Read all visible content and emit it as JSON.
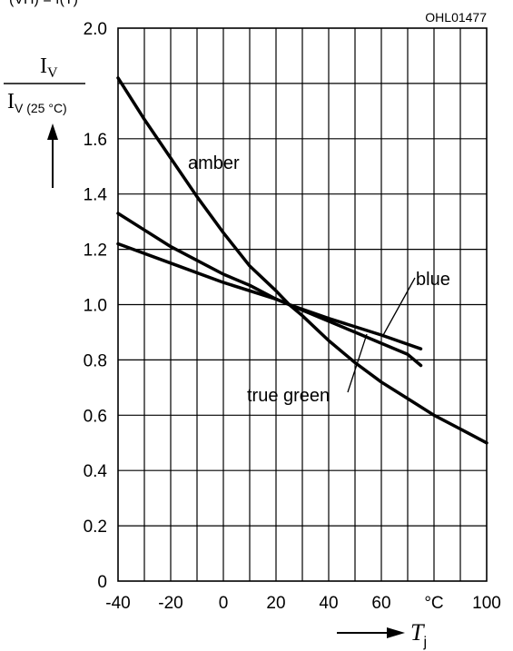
{
  "figure_code": "OHL01477",
  "top_fragment": "(VH) = f(T)",
  "ylabel": {
    "numerator": "I",
    "numerator_sub": "V",
    "denominator": "I",
    "denominator_sub": "V (25 °C)"
  },
  "xlabel": {
    "symbol": "T",
    "sub": "j"
  },
  "x_unit": "°C",
  "chart_data": {
    "type": "line",
    "title": "",
    "xlabel": "T_j",
    "ylabel": "I_V / I_V(25 °C)",
    "xlim": [
      -40,
      100
    ],
    "ylim": [
      0,
      2.0
    ],
    "grid": true,
    "x_ticks": [
      "-40",
      "-20",
      "0",
      "20",
      "40",
      "60",
      "°C",
      "100"
    ],
    "y_ticks": [
      "0",
      "0.2",
      "0.4",
      "0.6",
      "0.8",
      "1.0",
      "1.2",
      "1.4",
      "1.6",
      "2.0"
    ],
    "series": [
      {
        "name": "amber",
        "x": [
          -40,
          -30,
          -20,
          -10,
          0,
          10,
          20,
          25,
          30,
          40,
          50,
          60,
          70,
          80,
          90,
          100
        ],
        "y": [
          1.82,
          1.67,
          1.53,
          1.39,
          1.26,
          1.14,
          1.05,
          1.0,
          0.96,
          0.87,
          0.79,
          0.72,
          0.66,
          0.6,
          0.55,
          0.5
        ]
      },
      {
        "name": "true green",
        "x": [
          -40,
          -30,
          -20,
          -10,
          0,
          10,
          20,
          25,
          30,
          40,
          50,
          60,
          70,
          75
        ],
        "y": [
          1.33,
          1.27,
          1.21,
          1.16,
          1.11,
          1.07,
          1.02,
          1.0,
          0.98,
          0.94,
          0.9,
          0.86,
          0.82,
          0.78
        ]
      },
      {
        "name": "blue",
        "x": [
          -40,
          -20,
          0,
          20,
          25,
          40,
          60,
          75
        ],
        "y": [
          1.22,
          1.15,
          1.08,
          1.02,
          1.0,
          0.95,
          0.89,
          0.84
        ]
      }
    ]
  }
}
